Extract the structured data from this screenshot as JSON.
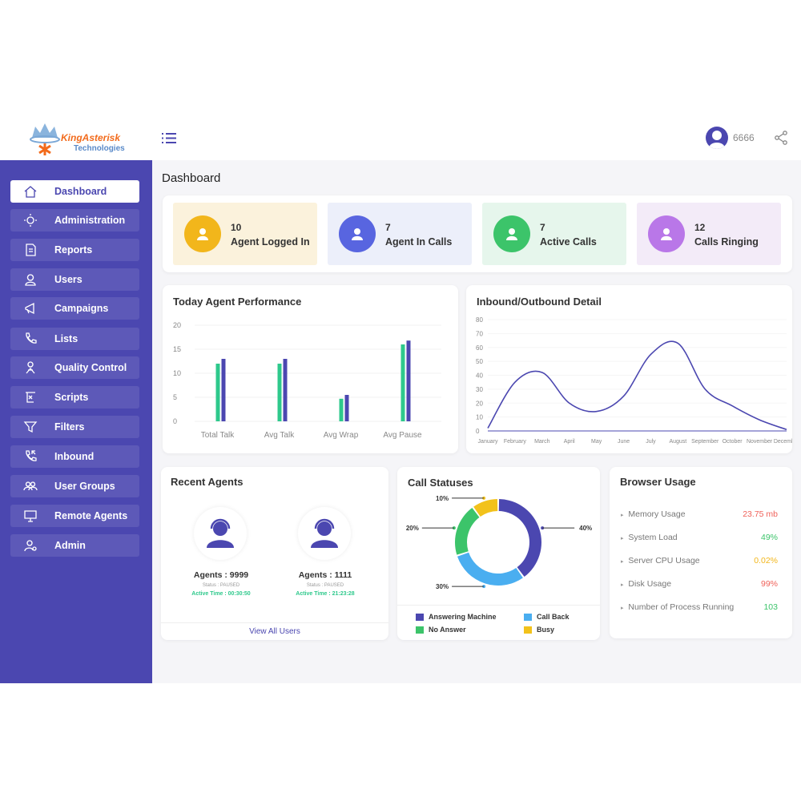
{
  "brand": {
    "name": "KingAsterisk",
    "sub": "Technologies"
  },
  "header": {
    "user": "6666",
    "menu_icon": "hamburger-icon",
    "share_icon": "share-icon"
  },
  "sidebar": {
    "items": [
      {
        "label": "Dashboard",
        "icon": "home-icon",
        "active": true
      },
      {
        "label": "Administration",
        "icon": "gear-icon"
      },
      {
        "label": "Reports",
        "icon": "report-icon"
      },
      {
        "label": "Users",
        "icon": "user-icon"
      },
      {
        "label": "Campaigns",
        "icon": "megaphone-icon"
      },
      {
        "label": "Lists",
        "icon": "phone-icon"
      },
      {
        "label": "Quality Control",
        "icon": "quality-icon"
      },
      {
        "label": "Scripts",
        "icon": "script-icon"
      },
      {
        "label": "Filters",
        "icon": "filter-icon"
      },
      {
        "label": "Inbound",
        "icon": "inbound-call-icon"
      },
      {
        "label": "User Groups",
        "icon": "group-icon"
      },
      {
        "label": "Remote Agents",
        "icon": "remote-icon"
      },
      {
        "label": "Admin",
        "icon": "admin-icon"
      }
    ]
  },
  "page_title": "Dashboard",
  "stats": [
    {
      "value": "10",
      "label": "Agent Logged In",
      "bg": "#fbf2dc",
      "color": "#f2b61b"
    },
    {
      "value": "7",
      "label": "Agent In Calls",
      "bg": "#eceffa",
      "color": "#5865e0"
    },
    {
      "value": "7",
      "label": "Active Calls",
      "bg": "#e6f6ec",
      "color": "#3cc46a"
    },
    {
      "value": "12",
      "label": "Calls Ringing",
      "bg": "#f3ebf8",
      "color": "#b977e8"
    }
  ],
  "chart_data": [
    {
      "type": "bar",
      "title": "Today Agent Performance",
      "categories": [
        "Total Talk",
        "Avg Talk",
        "Avg Wrap",
        "Avg Pause"
      ],
      "series": [
        {
          "values": [
            12,
            12,
            4.7,
            16
          ],
          "color": "#2ec98c"
        },
        {
          "values": [
            13,
            13,
            5.5,
            16.8
          ],
          "color": "#4b47b0"
        }
      ],
      "ylim": [
        0,
        20
      ],
      "yticks": [
        0,
        5,
        10,
        15,
        20
      ],
      "grid": true
    },
    {
      "type": "line",
      "title": "Inbound/Outbound Detail",
      "categories": [
        "January",
        "February",
        "March",
        "April",
        "May",
        "June",
        "July",
        "August",
        "September",
        "October",
        "November",
        "December"
      ],
      "series": [
        {
          "values": [
            2,
            35,
            42,
            20,
            14,
            25,
            55,
            63,
            30,
            18,
            8,
            1
          ],
          "color": "#4b47b0"
        }
      ],
      "ylim": [
        0,
        80
      ],
      "yticks": [
        0,
        10,
        20,
        30,
        40,
        50,
        60,
        70,
        80
      ],
      "grid": true
    },
    {
      "type": "pie",
      "title": "Call Statuses",
      "donut": true,
      "labels": [
        "Answering Machine",
        "Call Back",
        "No Answer",
        "Busy"
      ],
      "values": [
        40,
        30,
        20,
        10
      ],
      "display": [
        "40%",
        "30%",
        "20%",
        "10%"
      ],
      "colors": [
        "#4b47b0",
        "#4aaef0",
        "#3cc46a",
        "#f2c21b"
      ],
      "legend": "bottom"
    }
  ],
  "recent_agents": {
    "title": "Recent Agents",
    "agents": [
      {
        "name": "Agents : 9999",
        "status": "Status : PAUSED",
        "active": "Active Time : 00:30:50"
      },
      {
        "name": "Agents : 1111",
        "status": "Status : PAUSED",
        "active": "Active Time : 21:23:28"
      }
    ],
    "link": "View All Users"
  },
  "browser_usage": {
    "title": "Browser Usage",
    "items": [
      {
        "label": "Memory Usage",
        "value": "23.75 mb",
        "color": "#f0625a"
      },
      {
        "label": "System Load",
        "value": "49%",
        "color": "#3cc46a"
      },
      {
        "label": "Server CPU Usage",
        "value": "0.02%",
        "color": "#f2b61b"
      },
      {
        "label": "Disk Usage",
        "value": "99%",
        "color": "#f0625a"
      },
      {
        "label": "Number of Process Running",
        "value": "103",
        "color": "#3cc46a"
      }
    ]
  }
}
